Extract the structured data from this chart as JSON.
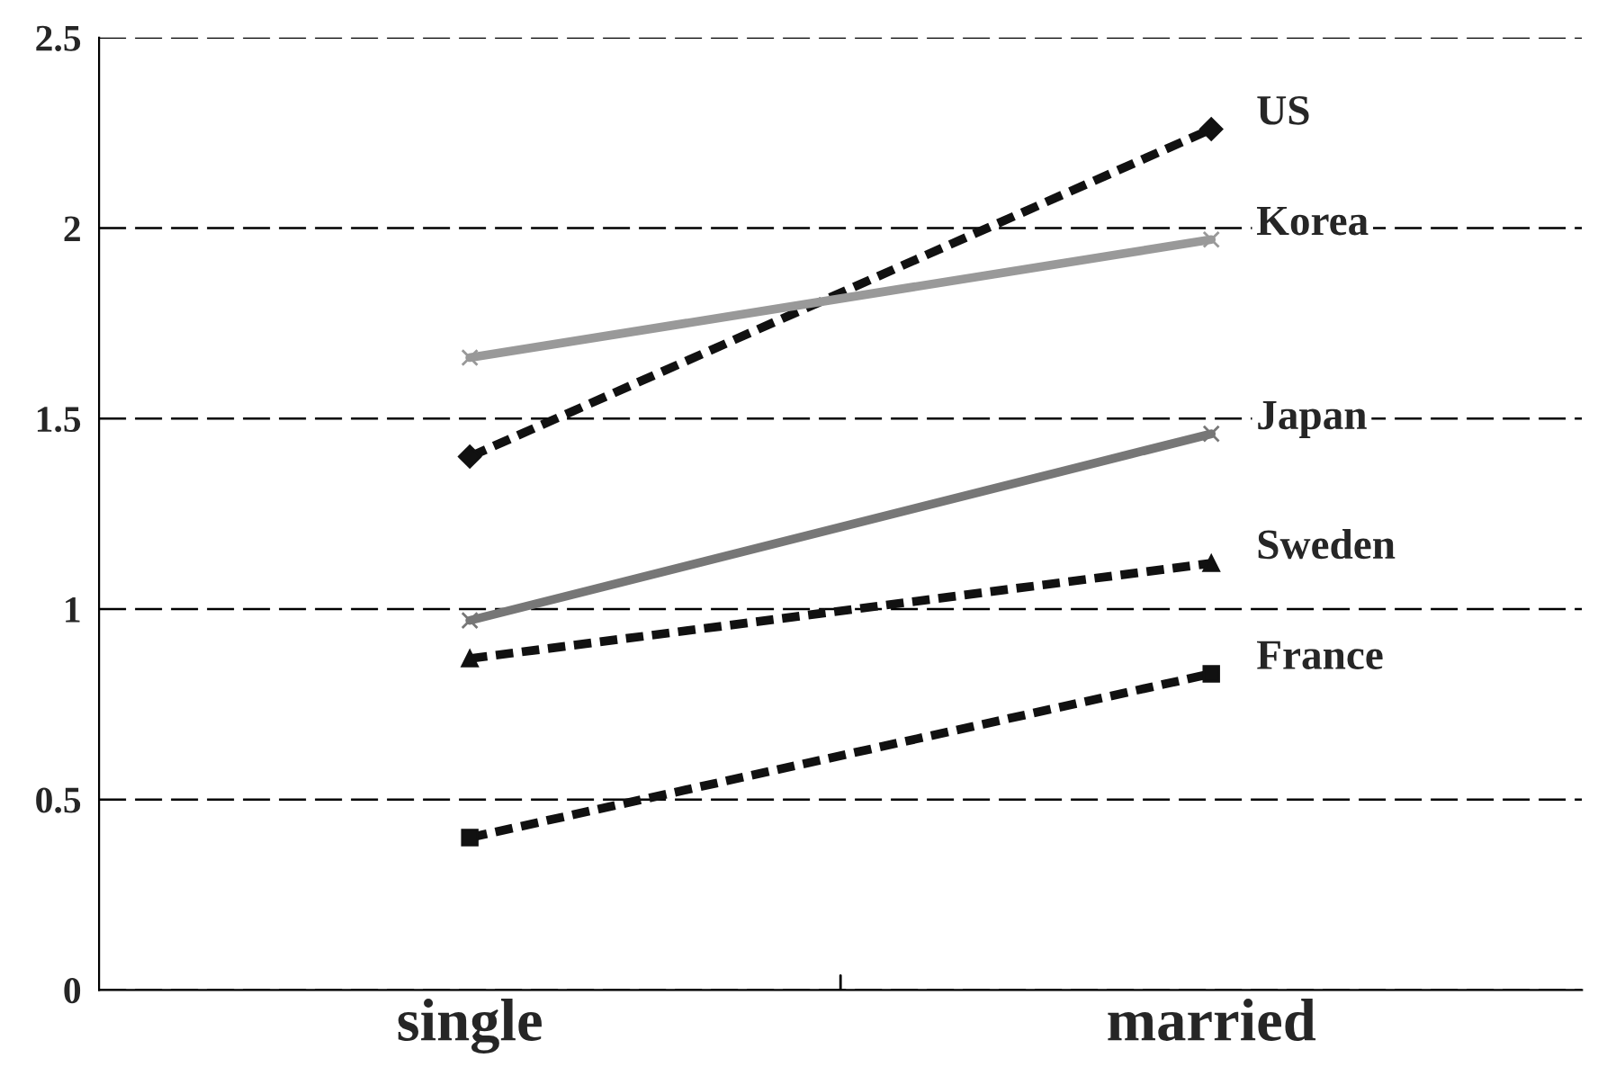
{
  "chart_data": {
    "type": "line",
    "categories": [
      "single",
      "married"
    ],
    "ylim": [
      0,
      2.5
    ],
    "yticks": [
      0,
      0.5,
      1,
      1.5,
      2,
      2.5
    ],
    "grid": "y",
    "legend": false,
    "series": [
      {
        "name": "US",
        "color": "#111111",
        "values": [
          1.4,
          2.26
        ],
        "marker": "diamond",
        "line_style": "dashed"
      },
      {
        "name": "Korea",
        "color": "#999999",
        "values": [
          1.66,
          1.97
        ],
        "marker": "cross",
        "line_style": "solid"
      },
      {
        "name": "Japan",
        "color": "#777777",
        "values": [
          0.97,
          1.46
        ],
        "marker": "cross",
        "line_style": "solid"
      },
      {
        "name": "Sweden",
        "color": "#111111",
        "values": [
          0.87,
          1.12
        ],
        "marker": "triangle",
        "line_style": "dashed"
      },
      {
        "name": "France",
        "color": "#111111",
        "values": [
          0.4,
          0.83
        ],
        "marker": "square",
        "line_style": "dashed"
      }
    ]
  }
}
